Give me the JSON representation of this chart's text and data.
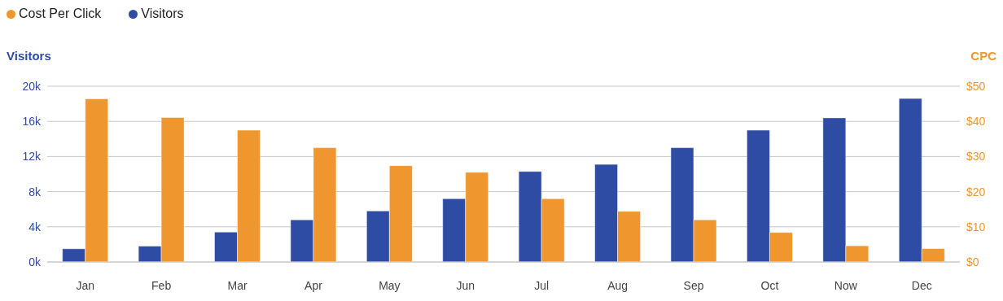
{
  "chart_data": {
    "type": "bar",
    "ylabel": "Visitors",
    "y2label": "CPC",
    "categories": [
      "Jan",
      "Feb",
      "Mar",
      "Apr",
      "May",
      "Jun",
      "Jul",
      "Aug",
      "Sep",
      "Oct",
      "Now",
      "Dec"
    ],
    "series": [
      {
        "name": "Visitors",
        "color": "#2e4ca3",
        "values": [
          1500,
          1800,
          3400,
          4800,
          5800,
          7200,
          10300,
          11100,
          13000,
          15000,
          16400,
          18600
        ]
      },
      {
        "name": "Cost Per Click",
        "color": "#f0962e",
        "axis": "y2",
        "values": [
          46.4,
          41.1,
          37.5,
          32.5,
          27.4,
          25.5,
          18,
          14.4,
          12,
          8.4,
          4.6,
          3.8
        ]
      }
    ],
    "ylim": [
      0,
      20000
    ],
    "yticks": [
      {
        "value": 0,
        "label": "0k"
      },
      {
        "value": 4000,
        "label": "4k"
      },
      {
        "value": 8000,
        "label": "8k"
      },
      {
        "value": 12000,
        "label": "12k"
      },
      {
        "value": 16000,
        "label": "16k"
      },
      {
        "value": 20000,
        "label": "20k"
      }
    ],
    "y2lim": [
      0,
      50
    ],
    "y2ticks": [
      {
        "value": 0,
        "label": "$0"
      },
      {
        "value": 10,
        "label": "$10"
      },
      {
        "value": 20,
        "label": "$20"
      },
      {
        "value": 30,
        "label": "$30"
      },
      {
        "value": 40,
        "label": "$40"
      },
      {
        "value": 50,
        "label": "$50"
      }
    ],
    "grid": "y",
    "legend": "top left"
  }
}
